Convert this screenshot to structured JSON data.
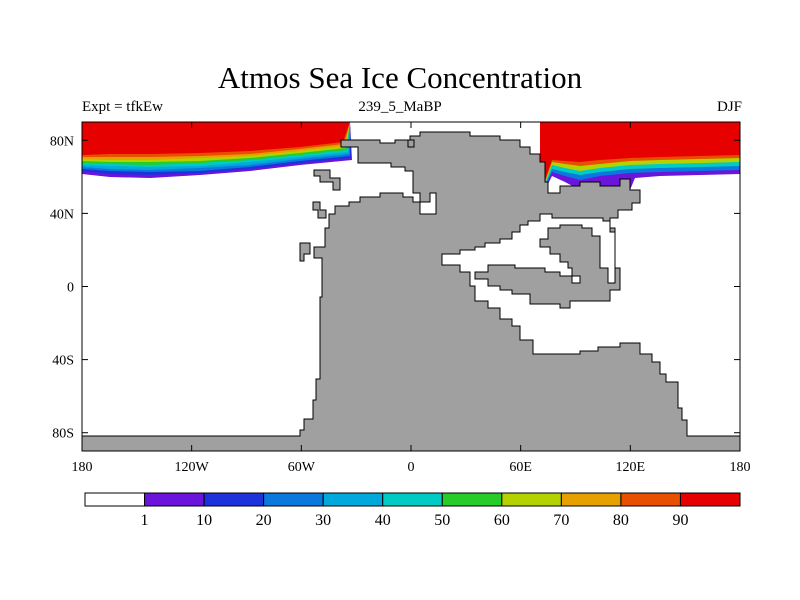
{
  "title": "Atmos Sea Ice Concentration",
  "subtitle_left": "Expt = tfkEw",
  "subtitle_center": "239_5_MaBP",
  "subtitle_right": "DJF",
  "map": {
    "lon_range": [
      -180,
      180
    ],
    "lat_range": [
      -90,
      90
    ],
    "land_color": "#a0a0a0",
    "ocean_color": "#ffffff",
    "x_ticks": [
      {
        "value": -180,
        "label": "180"
      },
      {
        "value": -120,
        "label": "120W"
      },
      {
        "value": -60,
        "label": "60W"
      },
      {
        "value": 0,
        "label": "0"
      },
      {
        "value": 60,
        "label": "60E"
      },
      {
        "value": 120,
        "label": "120E"
      },
      {
        "value": 180,
        "label": "180"
      }
    ],
    "y_ticks": [
      {
        "value": 80,
        "label": "80N"
      },
      {
        "value": 40,
        "label": "40N"
      },
      {
        "value": 0,
        "label": "0"
      },
      {
        "value": -40,
        "label": "40S"
      },
      {
        "value": -80,
        "label": "80S"
      }
    ]
  },
  "colorbar": {
    "labels": [
      "1",
      "10",
      "20",
      "30",
      "40",
      "50",
      "60",
      "70",
      "80",
      "90"
    ],
    "colors": [
      "#ffffff",
      "#6a14dc",
      "#1e32dc",
      "#0a78dc",
      "#00a8dc",
      "#00ccc4",
      "#28cc28",
      "#b4d200",
      "#e6a000",
      "#e65000",
      "#e60000"
    ]
  }
}
